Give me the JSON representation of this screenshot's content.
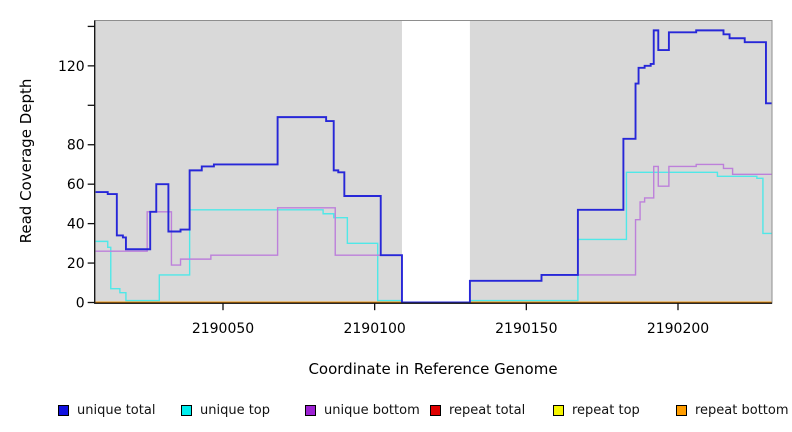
{
  "page": {
    "background": "#ffffff"
  },
  "chart_data": {
    "type": "line",
    "subtype": "step",
    "title": "",
    "xlabel": "Coordinate in Reference Genome",
    "ylabel": "Read Coverage Depth",
    "xlim": [
      2190008,
      2190231
    ],
    "ylim": [
      0,
      143
    ],
    "plot_background": "#d9d9d9",
    "box_border_color": "#8e8e8e",
    "axis_color": "#111111",
    "grid": false,
    "legend_position": "bottom",
    "x_axis": {
      "ticks": [
        2190050,
        2190100,
        2190150,
        2190200
      ],
      "labels": [
        "2190050",
        "2190100",
        "2190150",
        "2190200"
      ]
    },
    "y_axis": {
      "ticks": [
        0,
        20,
        40,
        60,
        80,
        100,
        120,
        140
      ],
      "labels": [
        "0",
        "20",
        "40",
        "60",
        "80",
        "",
        "120",
        ""
      ]
    },
    "gap_region": {
      "x_start": 2190109,
      "x_end": 2190131.4,
      "color": "#ffffff"
    },
    "series": [
      {
        "name": "repeat total",
        "color": "#e00000",
        "width": 1.4,
        "segments": [
          {
            "steps": [
              [
                2190008,
                0
              ]
            ],
            "end": 2190109
          },
          {
            "steps": [
              [
                2190131.4,
                0
              ]
            ],
            "end": 2190231
          }
        ]
      },
      {
        "name": "repeat top",
        "color": "#f0f000",
        "width": 1.4,
        "segments": [
          {
            "steps": [
              [
                2190008,
                0
              ]
            ],
            "end": 2190109
          },
          {
            "steps": [
              [
                2190131.4,
                0
              ]
            ],
            "end": 2190231
          }
        ]
      },
      {
        "name": "repeat bottom",
        "color": "#ff9100",
        "width": 1.4,
        "segments": [
          {
            "steps": [
              [
                2190008,
                0
              ]
            ],
            "end": 2190109
          },
          {
            "steps": [
              [
                2190131.4,
                0
              ]
            ],
            "end": 2190231
          }
        ]
      },
      {
        "name": "unique top",
        "color": "#4fe8e8",
        "width": 1.4,
        "segments": [
          {
            "steps": [
              [
                2190008,
                31
              ],
              [
                2190012,
                28
              ],
              [
                2190013,
                7
              ],
              [
                2190016,
                5
              ],
              [
                2190018,
                1
              ],
              [
                2190029,
                14
              ],
              [
                2190039,
                47
              ],
              [
                2190083,
                45
              ],
              [
                2190086.5,
                43
              ],
              [
                2190091,
                30
              ],
              [
                2190101,
                1
              ]
            ],
            "end": 2190109
          },
          {
            "steps": [
              [
                2190131.4,
                1
              ],
              [
                2190167,
                32
              ],
              [
                2190183,
                66
              ],
              [
                2190213,
                64
              ],
              [
                2190226,
                63
              ],
              [
                2190228,
                35
              ]
            ],
            "end": 2190231
          }
        ]
      },
      {
        "name": "unique bottom",
        "color": "#bd80da",
        "width": 1.4,
        "segments": [
          {
            "steps": [
              [
                2190008,
                26
              ],
              [
                2190025,
                46
              ],
              [
                2190033,
                19
              ],
              [
                2190036,
                22
              ],
              [
                2190046,
                24
              ],
              [
                2190068,
                48
              ],
              [
                2190087,
                24
              ],
              [
                2190109,
                0
              ],
              [
                2190131.4,
                11
              ],
              [
                2190155,
                14
              ],
              [
                2190186,
                42
              ],
              [
                2190187.5,
                51
              ],
              [
                2190189,
                53
              ],
              [
                2190192,
                69
              ],
              [
                2190193.5,
                59
              ],
              [
                2190197,
                69
              ],
              [
                2190206,
                70
              ],
              [
                2190215,
                68
              ],
              [
                2190218,
                65
              ]
            ],
            "end": 2190231
          }
        ]
      },
      {
        "name": "unique total",
        "color": "#2727d8",
        "width": 1.9,
        "segments": [
          {
            "steps": [
              [
                2190008,
                56
              ],
              [
                2190012,
                55
              ],
              [
                2190015,
                34
              ],
              [
                2190017,
                33
              ],
              [
                2190018,
                27
              ],
              [
                2190026,
                46
              ],
              [
                2190028,
                60
              ],
              [
                2190032,
                36
              ],
              [
                2190036,
                37
              ],
              [
                2190039,
                67
              ],
              [
                2190043,
                69
              ],
              [
                2190047,
                70
              ],
              [
                2190068,
                94
              ],
              [
                2190084,
                92
              ],
              [
                2190086.5,
                67
              ],
              [
                2190088,
                66
              ],
              [
                2190090,
                54
              ],
              [
                2190102,
                24
              ],
              [
                2190109,
                0
              ],
              [
                2190131.4,
                11
              ],
              [
                2190155,
                14
              ],
              [
                2190167,
                47
              ],
              [
                2190182,
                83
              ],
              [
                2190186,
                111
              ],
              [
                2190187,
                119
              ],
              [
                2190189,
                120
              ],
              [
                2190191,
                121
              ],
              [
                2190192,
                138
              ],
              [
                2190193.5,
                128
              ],
              [
                2190197,
                137
              ],
              [
                2190206,
                138
              ],
              [
                2190215,
                136
              ],
              [
                2190217,
                134
              ],
              [
                2190222,
                132
              ],
              [
                2190229,
                101
              ]
            ],
            "end": 2190231
          }
        ]
      }
    ]
  },
  "legend": {
    "items": [
      {
        "label": "unique total",
        "color": "#1111e0"
      },
      {
        "label": "unique top",
        "color": "#00eded"
      },
      {
        "label": "unique bottom",
        "color": "#9d22d3"
      },
      {
        "label": "repeat total",
        "color": "#e00000"
      },
      {
        "label": "repeat top",
        "color": "#f5f500"
      },
      {
        "label": "repeat bottom",
        "color": "#ff9d00"
      }
    ]
  }
}
